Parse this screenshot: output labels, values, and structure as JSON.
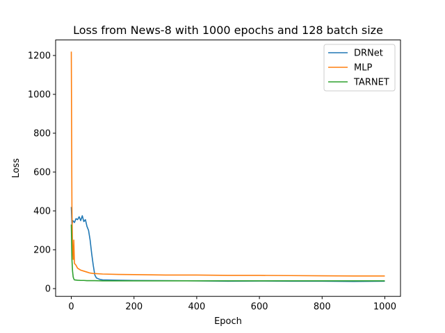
{
  "chart_data": {
    "type": "line",
    "title": "Loss from News-8 with 1000 epochs and 128 batch size",
    "xlabel": "Epoch",
    "ylabel": "Loss",
    "xlim": [
      -50,
      1050
    ],
    "ylim": [
      -40,
      1280
    ],
    "xticks": [
      0,
      200,
      400,
      600,
      800,
      1000
    ],
    "yticks": [
      0,
      200,
      400,
      600,
      800,
      1000,
      1200
    ],
    "grid": false,
    "legend_position": "top-right",
    "series": [
      {
        "name": "DRNet",
        "color": "#1f77b4",
        "x": [
          0,
          2,
          5,
          10,
          15,
          20,
          25,
          30,
          35,
          40,
          45,
          50,
          55,
          60,
          65,
          70,
          75,
          80,
          90,
          100,
          150,
          200,
          300,
          400,
          500,
          600,
          700,
          800,
          900,
          1000
        ],
        "y": [
          420,
          330,
          350,
          340,
          360,
          355,
          370,
          350,
          375,
          345,
          355,
          320,
          300,
          250,
          180,
          120,
          70,
          55,
          48,
          45,
          43,
          42,
          41,
          40,
          38,
          39,
          38,
          38,
          37,
          38
        ]
      },
      {
        "name": "MLP",
        "color": "#ff7f0e",
        "x": [
          0,
          2,
          4,
          6,
          8,
          10,
          15,
          20,
          30,
          40,
          50,
          60,
          70,
          80,
          100,
          150,
          200,
          300,
          400,
          500,
          600,
          700,
          800,
          900,
          1000
        ],
        "y": [
          1220,
          420,
          200,
          150,
          250,
          130,
          120,
          105,
          95,
          90,
          85,
          80,
          78,
          77,
          75,
          73,
          72,
          70,
          70,
          68,
          68,
          67,
          66,
          65,
          65
        ]
      },
      {
        "name": "TARNET",
        "color": "#2ca02c",
        "x": [
          0,
          2,
          4,
          6,
          8,
          10,
          15,
          20,
          30,
          40,
          50,
          75,
          100,
          150,
          200,
          300,
          400,
          500,
          600,
          700,
          800,
          900,
          1000
        ],
        "y": [
          330,
          150,
          90,
          60,
          50,
          45,
          44,
          43,
          42,
          42,
          41,
          41,
          40,
          40,
          40,
          40,
          40,
          40,
          40,
          40,
          40,
          40,
          40
        ]
      }
    ]
  }
}
